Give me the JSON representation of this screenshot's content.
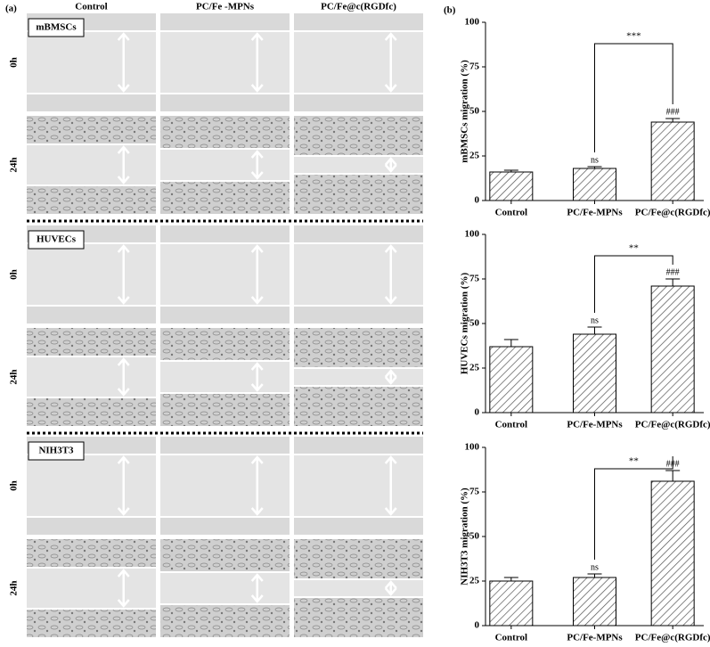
{
  "panel_a": {
    "label": "(a)",
    "columns": [
      "Control",
      "PC/Fe -MPNs",
      "PC/Fe@c(RGDfc)"
    ],
    "groups": [
      {
        "name": "mBMSCs",
        "rows": [
          "0h",
          "24h"
        ]
      },
      {
        "name": "HUVECs",
        "rows": [
          "0h",
          "24h"
        ]
      },
      {
        "name": "NIH3T3",
        "rows": [
          "0h",
          "24h"
        ]
      }
    ]
  },
  "panel_b": {
    "label": "(b)"
  },
  "chart_data": [
    {
      "type": "bar",
      "ylabel": "mBMSCs migration (%)",
      "categories": [
        "Control",
        "PC/Fe-MPNs",
        "PC/Fe@c(RGDfc)"
      ],
      "values": [
        16,
        18,
        44
      ],
      "errors": [
        1,
        1,
        2
      ],
      "ylim": [
        0,
        100
      ],
      "yticks": [
        0,
        25,
        50,
        75,
        100
      ],
      "annotations": [
        {
          "text": "ns",
          "category": "PC/Fe-MPNs"
        },
        {
          "text": "###",
          "category": "PC/Fe@c(RGDfc)"
        }
      ],
      "bracket": {
        "text": "***",
        "from": "PC/Fe-MPNs",
        "to": "PC/Fe@c(RGDfc)"
      }
    },
    {
      "type": "bar",
      "ylabel": "HUVECs migration (%)",
      "categories": [
        "Control",
        "PC/Fe-MPNs",
        "PC/Fe@c(RGDfc)"
      ],
      "values": [
        37,
        44,
        71
      ],
      "errors": [
        4,
        4,
        4
      ],
      "ylim": [
        0,
        100
      ],
      "yticks": [
        0,
        25,
        50,
        75,
        100
      ],
      "annotations": [
        {
          "text": "ns",
          "category": "PC/Fe-MPNs"
        },
        {
          "text": "###",
          "category": "PC/Fe@c(RGDfc)"
        }
      ],
      "bracket": {
        "text": "**",
        "from": "PC/Fe-MPNs",
        "to": "PC/Fe@c(RGDfc)"
      }
    },
    {
      "type": "bar",
      "ylabel": "NIH3T3 migration (%)",
      "categories": [
        "Control",
        "PC/Fe-MPNs",
        "PC/Fe@c(RGDfc)"
      ],
      "values": [
        25,
        27,
        81
      ],
      "errors": [
        2,
        2,
        6
      ],
      "ylim": [
        0,
        100
      ],
      "yticks": [
        0,
        25,
        50,
        75,
        100
      ],
      "annotations": [
        {
          "text": "ns",
          "category": "PC/Fe-MPNs"
        },
        {
          "text": "###",
          "category": "PC/Fe@c(RGDfc)"
        }
      ],
      "bracket": {
        "text": "**",
        "from": "PC/Fe-MPNs",
        "to": "PC/Fe@c(RGDfc)"
      }
    }
  ]
}
